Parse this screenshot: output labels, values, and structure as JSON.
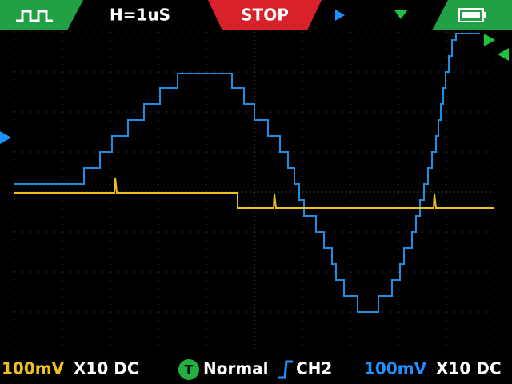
{
  "top_bar": {
    "timebase": "H=1uS",
    "status": "STOP"
  },
  "bottom_bar": {
    "ch1_scale": "100mV",
    "ch1_probe": "X10 DC",
    "trigger_badge": "T",
    "trigger_mode": "Normal",
    "trigger_source": "CH2",
    "ch2_scale": "100mV",
    "ch2_probe": "X10 DC"
  }
}
